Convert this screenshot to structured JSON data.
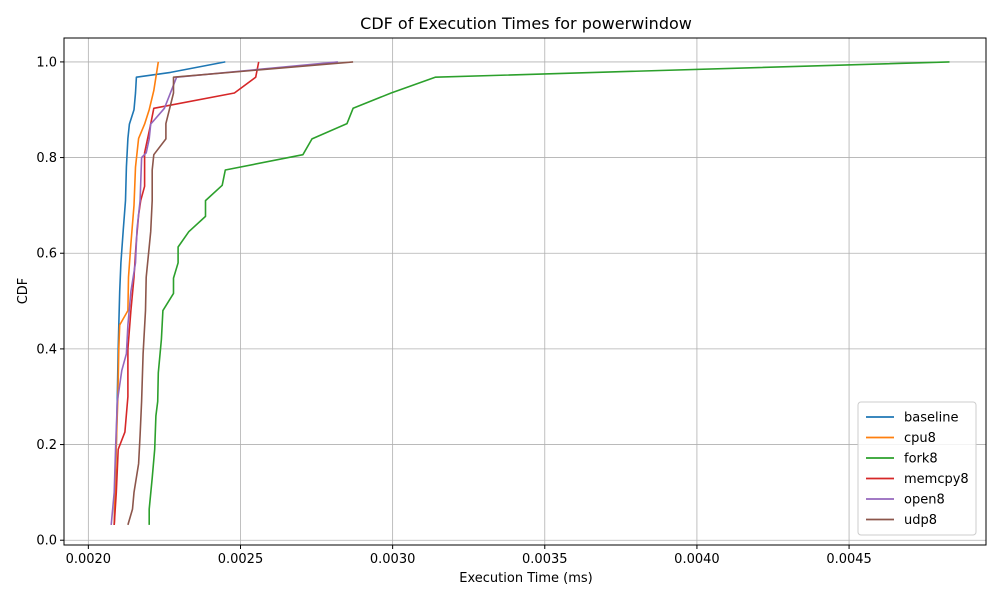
{
  "chart_data": {
    "type": "line",
    "title": "CDF of Execution Times for powerwindow",
    "xlabel": "Execution Time (ms)",
    "ylabel": "CDF",
    "xlim": [
      0.00192,
      0.00495
    ],
    "ylim": [
      -0.01,
      1.05
    ],
    "xticks": [
      0.002,
      0.0025,
      0.003,
      0.0035,
      0.004,
      0.0045
    ],
    "xtick_labels": [
      "0.0020",
      "0.0025",
      "0.0030",
      "0.0035",
      "0.0040",
      "0.0045"
    ],
    "yticks": [
      0.0,
      0.2,
      0.4,
      0.6,
      0.8,
      1.0
    ],
    "ytick_labels": [
      "0.0",
      "0.2",
      "0.4",
      "0.6",
      "0.8",
      "1.0"
    ],
    "grid": true,
    "legend_position": "bottom-right",
    "series": [
      {
        "name": "baseline",
        "color": "#1f77b4",
        "points": [
          [
            0.002085,
            0.032
          ],
          [
            0.002088,
            0.1
          ],
          [
            0.002092,
            0.2
          ],
          [
            0.002095,
            0.3
          ],
          [
            0.002098,
            0.4
          ],
          [
            0.0021,
            0.45
          ],
          [
            0.002103,
            0.52
          ],
          [
            0.002107,
            0.58
          ],
          [
            0.002115,
            0.65
          ],
          [
            0.002122,
            0.71
          ],
          [
            0.002125,
            0.78
          ],
          [
            0.00213,
            0.84
          ],
          [
            0.002135,
            0.87
          ],
          [
            0.00215,
            0.9
          ],
          [
            0.002155,
            0.935
          ],
          [
            0.002158,
            0.968
          ],
          [
            0.00227,
            0.978
          ],
          [
            0.00245,
            1.0
          ]
        ]
      },
      {
        "name": "cpu8",
        "color": "#ff7f0e",
        "points": [
          [
            0.002085,
            0.032
          ],
          [
            0.002088,
            0.1
          ],
          [
            0.002092,
            0.2
          ],
          [
            0.002097,
            0.3
          ],
          [
            0.0021,
            0.4
          ],
          [
            0.002103,
            0.45
          ],
          [
            0.00213,
            0.48
          ],
          [
            0.002132,
            0.55
          ],
          [
            0.00214,
            0.62
          ],
          [
            0.00215,
            0.7
          ],
          [
            0.002155,
            0.78
          ],
          [
            0.002165,
            0.84
          ],
          [
            0.002185,
            0.87
          ],
          [
            0.0022,
            0.9
          ],
          [
            0.002215,
            0.94
          ],
          [
            0.00223,
            1.0
          ]
        ]
      },
      {
        "name": "fork8",
        "color": "#2ca02c",
        "points": [
          [
            0.0022,
            0.032
          ],
          [
            0.0022,
            0.065
          ],
          [
            0.00221,
            0.13
          ],
          [
            0.002218,
            0.19
          ],
          [
            0.002222,
            0.26
          ],
          [
            0.002228,
            0.29
          ],
          [
            0.00223,
            0.35
          ],
          [
            0.00224,
            0.42
          ],
          [
            0.002245,
            0.48
          ],
          [
            0.00228,
            0.516
          ],
          [
            0.00228,
            0.548
          ],
          [
            0.002295,
            0.58
          ],
          [
            0.002295,
            0.613
          ],
          [
            0.00233,
            0.645
          ],
          [
            0.002385,
            0.677
          ],
          [
            0.002385,
            0.71
          ],
          [
            0.00244,
            0.742
          ],
          [
            0.00245,
            0.774
          ],
          [
            0.002705,
            0.806
          ],
          [
            0.002735,
            0.839
          ],
          [
            0.00285,
            0.871
          ],
          [
            0.00287,
            0.903
          ],
          [
            0.002995,
            0.935
          ],
          [
            0.00314,
            0.968
          ],
          [
            0.00483,
            1.0
          ]
        ]
      },
      {
        "name": "memcpy8",
        "color": "#d62728",
        "points": [
          [
            0.002085,
            0.032
          ],
          [
            0.002092,
            0.1
          ],
          [
            0.002098,
            0.19
          ],
          [
            0.00212,
            0.226
          ],
          [
            0.00213,
            0.3
          ],
          [
            0.00213,
            0.4
          ],
          [
            0.00214,
            0.48
          ],
          [
            0.00215,
            0.55
          ],
          [
            0.002157,
            0.62
          ],
          [
            0.002165,
            0.68
          ],
          [
            0.002172,
            0.71
          ],
          [
            0.002185,
            0.74
          ],
          [
            0.002185,
            0.81
          ],
          [
            0.002205,
            0.87
          ],
          [
            0.002215,
            0.903
          ],
          [
            0.00248,
            0.935
          ],
          [
            0.00255,
            0.968
          ],
          [
            0.00256,
            1.0
          ]
        ]
      },
      {
        "name": "open8",
        "color": "#9467bd",
        "points": [
          [
            0.002075,
            0.032
          ],
          [
            0.002085,
            0.1
          ],
          [
            0.00209,
            0.2
          ],
          [
            0.002095,
            0.29
          ],
          [
            0.00211,
            0.355
          ],
          [
            0.002125,
            0.39
          ],
          [
            0.00213,
            0.45
          ],
          [
            0.00214,
            0.52
          ],
          [
            0.002155,
            0.58
          ],
          [
            0.00216,
            0.65
          ],
          [
            0.00217,
            0.71
          ],
          [
            0.002175,
            0.8
          ],
          [
            0.00219,
            0.81
          ],
          [
            0.0022,
            0.839
          ],
          [
            0.002205,
            0.87
          ],
          [
            0.00225,
            0.903
          ],
          [
            0.00229,
            0.968
          ],
          [
            0.00282,
            1.0
          ]
        ]
      },
      {
        "name": "udp8",
        "color": "#8c564b",
        "points": [
          [
            0.00213,
            0.032
          ],
          [
            0.002145,
            0.065
          ],
          [
            0.00215,
            0.1
          ],
          [
            0.002165,
            0.16
          ],
          [
            0.00217,
            0.22
          ],
          [
            0.002175,
            0.29
          ],
          [
            0.00218,
            0.39
          ],
          [
            0.002188,
            0.48
          ],
          [
            0.00219,
            0.55
          ],
          [
            0.0022,
            0.613
          ],
          [
            0.002205,
            0.645
          ],
          [
            0.00221,
            0.71
          ],
          [
            0.00221,
            0.774
          ],
          [
            0.002215,
            0.806
          ],
          [
            0.002255,
            0.839
          ],
          [
            0.002255,
            0.871
          ],
          [
            0.00228,
            0.935
          ],
          [
            0.00228,
            0.968
          ],
          [
            0.00287,
            1.0
          ]
        ]
      }
    ]
  }
}
